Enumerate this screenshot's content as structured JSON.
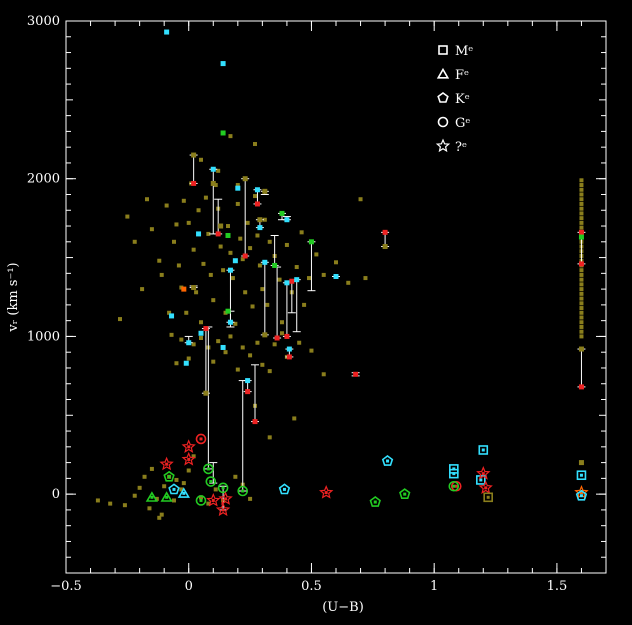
{
  "chart_data": {
    "type": "scatter",
    "title": "",
    "xlabel": "(U−B)",
    "ylabel": "vᵣ (km s⁻¹)",
    "xlim": [
      -0.5,
      1.7
    ],
    "ylim": [
      -500,
      3000
    ],
    "x_ticks": [
      -0.5,
      0,
      0.5,
      1,
      1.5
    ],
    "x_tick_labels": [
      "−0.5",
      "0",
      "0.5",
      "1",
      "1.5"
    ],
    "y_ticks": [
      0,
      1000,
      2000,
      3000
    ],
    "y_tick_labels": [
      "0",
      "1000",
      "2000",
      "3000"
    ],
    "legend_position": "top-right",
    "legend": [
      {
        "marker": "square",
        "label": "Mᵉ"
      },
      {
        "marker": "triangle",
        "label": "Fᵉ"
      },
      {
        "marker": "pentagon",
        "label": "Kᵉ"
      },
      {
        "marker": "circle",
        "label": "Gᵉ"
      },
      {
        "marker": "star",
        "label": "?ᵉ"
      }
    ],
    "colors": {
      "background": "#000000",
      "olive": "#8a7e1c",
      "cyan": "#33e0ff",
      "green": "#22cc22",
      "red": "#ee2222",
      "orange": "#ff6600",
      "white": "#ffffff"
    },
    "background_points": [
      [
        -0.37,
        -40
      ],
      [
        -0.32,
        -60
      ],
      [
        -0.26,
        -70
      ],
      [
        -0.22,
        -10
      ],
      [
        -0.2,
        40
      ],
      [
        -0.18,
        110
      ],
      [
        -0.16,
        -90
      ],
      [
        -0.15,
        160
      ],
      [
        -0.13,
        -30
      ],
      [
        -0.12,
        -150
      ],
      [
        -0.11,
        -130
      ],
      [
        -0.1,
        50
      ],
      [
        -0.08,
        110
      ],
      [
        -0.06,
        -40
      ],
      [
        -0.05,
        90
      ],
      [
        -0.03,
        30
      ],
      [
        -0.02,
        70
      ],
      [
        0.0,
        150
      ],
      [
        0.02,
        240
      ],
      [
        0.05,
        -20
      ],
      [
        0.08,
        -60
      ],
      [
        0.11,
        30
      ],
      [
        0.14,
        -40
      ],
      [
        0.19,
        110
      ],
      [
        0.22,
        60
      ],
      [
        0.25,
        -30
      ],
      [
        -0.28,
        1110
      ],
      [
        -0.25,
        1760
      ],
      [
        -0.22,
        1600
      ],
      [
        -0.19,
        1300
      ],
      [
        -0.17,
        1870
      ],
      [
        -0.15,
        1680
      ],
      [
        -0.12,
        1480
      ],
      [
        -0.11,
        1390
      ],
      [
        -0.09,
        1830
      ],
      [
        -0.08,
        1150
      ],
      [
        -0.07,
        1010
      ],
      [
        -0.06,
        1600
      ],
      [
        -0.05,
        1710
      ],
      [
        -0.04,
        1450
      ],
      [
        -0.03,
        1310
      ],
      [
        -0.02,
        1860
      ],
      [
        -0.01,
        1150
      ],
      [
        0.0,
        1720
      ],
      [
        0.01,
        1970
      ],
      [
        0.02,
        1550
      ],
      [
        0.03,
        1280
      ],
      [
        0.04,
        1800
      ],
      [
        0.05,
        1090
      ],
      [
        0.06,
        1460
      ],
      [
        0.07,
        1880
      ],
      [
        0.08,
        1650
      ],
      [
        0.09,
        1390
      ],
      [
        0.1,
        1230
      ],
      [
        0.11,
        1960
      ],
      [
        0.12,
        1810
      ],
      [
        0.13,
        1570
      ],
      [
        0.14,
        1420
      ],
      [
        0.15,
        1150
      ],
      [
        0.16,
        1700
      ],
      [
        0.17,
        1530
      ],
      [
        0.18,
        1370
      ],
      [
        0.19,
        1080
      ],
      [
        0.2,
        1840
      ],
      [
        0.21,
        1620
      ],
      [
        0.22,
        1490
      ],
      [
        0.23,
        1280
      ],
      [
        0.24,
        1720
      ],
      [
        0.25,
        1560
      ],
      [
        0.26,
        1190
      ],
      [
        0.27,
        1890
      ],
      [
        0.28,
        1640
      ],
      [
        0.29,
        1450
      ],
      [
        0.3,
        1300
      ],
      [
        0.31,
        1740
      ],
      [
        0.32,
        1200
      ],
      [
        0.33,
        1600
      ],
      [
        0.35,
        1510
      ],
      [
        0.37,
        1360
      ],
      [
        0.38,
        1090
      ],
      [
        0.4,
        1580
      ],
      [
        0.42,
        1280
      ],
      [
        0.44,
        1440
      ],
      [
        0.46,
        1660
      ],
      [
        0.47,
        1200
      ],
      [
        0.49,
        1370
      ],
      [
        0.52,
        1520
      ],
      [
        0.55,
        1390
      ],
      [
        0.6,
        1470
      ],
      [
        0.65,
        1340
      ],
      [
        0.7,
        1870
      ],
      [
        0.72,
        1370
      ],
      [
        -0.05,
        830
      ],
      [
        -0.03,
        980
      ],
      [
        0.0,
        860
      ],
      [
        0.02,
        950
      ],
      [
        0.05,
        990
      ],
      [
        0.08,
        930
      ],
      [
        0.1,
        840
      ],
      [
        0.12,
        970
      ],
      [
        0.15,
        900
      ],
      [
        0.17,
        1000
      ],
      [
        0.2,
        790
      ],
      [
        0.22,
        930
      ],
      [
        0.25,
        880
      ],
      [
        0.28,
        960
      ],
      [
        0.3,
        820
      ],
      [
        0.33,
        780
      ],
      [
        0.35,
        950
      ],
      [
        0.38,
        1020
      ],
      [
        0.4,
        870
      ],
      [
        0.45,
        960
      ],
      [
        0.5,
        910
      ],
      [
        0.55,
        760
      ],
      [
        0.43,
        480
      ],
      [
        0.33,
        360
      ],
      [
        0.27,
        560
      ],
      [
        0.17,
        2270
      ],
      [
        0.2,
        1960
      ],
      [
        0.27,
        2220
      ],
      [
        0.12,
        2050
      ],
      [
        0.05,
        2120
      ]
    ],
    "connected_pairs": [
      {
        "x": 0.02,
        "y1": 2150,
        "y2": 1970
      },
      {
        "x": 0.1,
        "y1": 2060,
        "y2": 1650
      },
      {
        "x": 0.12,
        "y1": 1870,
        "y2": 1650
      },
      {
        "x": 0.23,
        "y1": 2000,
        "y2": 1510
      },
      {
        "x": 0.28,
        "y1": 1930,
        "y2": 1840
      },
      {
        "x": 0.31,
        "y1": 1920,
        "y2": 1900
      },
      {
        "x": 0.29,
        "y1": 1740,
        "y2": 1690
      },
      {
        "x": 0.38,
        "y1": 1780,
        "y2": 1740
      },
      {
        "x": 0.4,
        "y1": 1760,
        "y2": 1740
      },
      {
        "x": 0.35,
        "y1": 1640,
        "y2": 1450
      },
      {
        "x": 0.31,
        "y1": 1470,
        "y2": 1010
      },
      {
        "x": 0.36,
        "y1": 1440,
        "y2": 990
      },
      {
        "x": 0.5,
        "y1": 1600,
        "y2": 1290
      },
      {
        "x": 0.42,
        "y1": 1350,
        "y2": 1150
      },
      {
        "x": 0.44,
        "y1": 1360,
        "y2": 1030
      },
      {
        "x": 0.4,
        "y1": 1340,
        "y2": 1000
      },
      {
        "x": 0.41,
        "y1": 920,
        "y2": 870
      },
      {
        "x": 0.6,
        "y1": 1380,
        "y2": 1380
      },
      {
        "x": 0.68,
        "y1": 770,
        "y2": 750
      },
      {
        "x": 0.8,
        "y1": 1660,
        "y2": 1570
      },
      {
        "x": 0.17,
        "y1": 1420,
        "y2": 1060
      },
      {
        "x": 0.17,
        "y1": 1160,
        "y2": 1090
      },
      {
        "x": 0.02,
        "y1": 1320,
        "y2": 1310
      },
      {
        "x": 0.07,
        "y1": 1050,
        "y2": 640
      },
      {
        "x": 0.08,
        "y1": 1060,
        "y2": 160
      },
      {
        "x": 0.22,
        "y1": 720,
        "y2": 20
      },
      {
        "x": 0.24,
        "y1": 720,
        "y2": 650
      },
      {
        "x": 0.27,
        "y1": 820,
        "y2": 460
      },
      {
        "x": 0.0,
        "y1": 1000,
        "y2": 960
      },
      {
        "x": 0.1,
        "y1": 200,
        "y2": 70
      },
      {
        "x": 0.14,
        "y1": 50,
        "y2": -100
      },
      {
        "x": 1.6,
        "y1": 1660,
        "y2": 1460
      },
      {
        "x": 1.6,
        "y1": 920,
        "y2": 680
      }
    ],
    "vertical_strip": {
      "x": 1.6,
      "y_min": 1000,
      "y_max": 1990
    },
    "highlight_points": [
      {
        "x": -0.09,
        "y": 2930,
        "c": "cyan"
      },
      {
        "x": 0.14,
        "y": 2730,
        "c": "cyan"
      },
      {
        "x": 0.14,
        "y": 2290,
        "c": "green"
      },
      {
        "x": 0.02,
        "y": 2150,
        "c": "olive"
      },
      {
        "x": 0.02,
        "y": 1970,
        "c": "red"
      },
      {
        "x": 0.1,
        "y": 2060,
        "c": "cyan"
      },
      {
        "x": 0.1,
        "y": 1970,
        "c": "olive"
      },
      {
        "x": 0.12,
        "y": 1650,
        "c": "red"
      },
      {
        "x": 0.2,
        "y": 1940,
        "c": "cyan"
      },
      {
        "x": 0.23,
        "y": 2000,
        "c": "olive"
      },
      {
        "x": 0.23,
        "y": 1510,
        "c": "red"
      },
      {
        "x": 0.28,
        "y": 1930,
        "c": "cyan"
      },
      {
        "x": 0.28,
        "y": 1840,
        "c": "red"
      },
      {
        "x": 0.31,
        "y": 1920,
        "c": "olive"
      },
      {
        "x": 0.29,
        "y": 1740,
        "c": "olive"
      },
      {
        "x": 0.29,
        "y": 1690,
        "c": "cyan"
      },
      {
        "x": 0.38,
        "y": 1780,
        "c": "green"
      },
      {
        "x": 0.4,
        "y": 1740,
        "c": "cyan"
      },
      {
        "x": 0.35,
        "y": 1450,
        "c": "green"
      },
      {
        "x": 0.31,
        "y": 1470,
        "c": "cyan"
      },
      {
        "x": 0.31,
        "y": 1010,
        "c": "olive"
      },
      {
        "x": 0.36,
        "y": 990,
        "c": "red"
      },
      {
        "x": 0.5,
        "y": 1600,
        "c": "green"
      },
      {
        "x": 0.42,
        "y": 1350,
        "c": "red"
      },
      {
        "x": 0.44,
        "y": 1360,
        "c": "cyan"
      },
      {
        "x": 0.4,
        "y": 1340,
        "c": "cyan"
      },
      {
        "x": 0.4,
        "y": 1000,
        "c": "red"
      },
      {
        "x": 0.41,
        "y": 920,
        "c": "cyan"
      },
      {
        "x": 0.41,
        "y": 870,
        "c": "red"
      },
      {
        "x": 0.6,
        "y": 1380,
        "c": "cyan"
      },
      {
        "x": 0.68,
        "y": 760,
        "c": "red"
      },
      {
        "x": 0.8,
        "y": 1660,
        "c": "red"
      },
      {
        "x": 0.8,
        "y": 1570,
        "c": "olive"
      },
      {
        "x": -0.02,
        "y": 1300,
        "c": "orange"
      },
      {
        "x": 0.02,
        "y": 1310,
        "c": "olive"
      },
      {
        "x": -0.07,
        "y": 1130,
        "c": "cyan"
      },
      {
        "x": 0.0,
        "y": 960,
        "c": "cyan"
      },
      {
        "x": -0.01,
        "y": 830,
        "c": "cyan"
      },
      {
        "x": 0.07,
        "y": 1050,
        "c": "red"
      },
      {
        "x": 0.07,
        "y": 640,
        "c": "olive"
      },
      {
        "x": 0.17,
        "y": 1420,
        "c": "cyan"
      },
      {
        "x": 0.17,
        "y": 1090,
        "c": "cyan"
      },
      {
        "x": 0.16,
        "y": 1160,
        "c": "green"
      },
      {
        "x": 0.04,
        "y": 1650,
        "c": "cyan"
      },
      {
        "x": 0.13,
        "y": 1700,
        "c": "olive"
      },
      {
        "x": 0.16,
        "y": 1640,
        "c": "green"
      },
      {
        "x": 0.19,
        "y": 1480,
        "c": "cyan"
      },
      {
        "x": 0.14,
        "y": 930,
        "c": "cyan"
      },
      {
        "x": 0.24,
        "y": 720,
        "c": "cyan"
      },
      {
        "x": 0.24,
        "y": 650,
        "c": "red"
      },
      {
        "x": 0.27,
        "y": 460,
        "c": "red"
      },
      {
        "x": 0.05,
        "y": 1020,
        "c": "cyan"
      },
      {
        "x": 1.6,
        "y": 1660,
        "c": "red"
      },
      {
        "x": 1.6,
        "y": 1460,
        "c": "red"
      },
      {
        "x": 1.6,
        "y": 1630,
        "c": "green"
      },
      {
        "x": 1.6,
        "y": 920,
        "c": "olive"
      },
      {
        "x": 1.6,
        "y": 680,
        "c": "red"
      },
      {
        "x": 1.6,
        "y": 200,
        "c": "olive"
      }
    ],
    "marker_points": [
      {
        "x": 0.05,
        "y": 350,
        "m": "circle",
        "c": "red"
      },
      {
        "x": 0.0,
        "y": 300,
        "m": "star",
        "c": "red"
      },
      {
        "x": -0.09,
        "y": 190,
        "m": "star",
        "c": "red"
      },
      {
        "x": 0.0,
        "y": 220,
        "m": "star",
        "c": "red"
      },
      {
        "x": 0.08,
        "y": 160,
        "m": "circle",
        "c": "green"
      },
      {
        "x": -0.08,
        "y": 110,
        "m": "pentagon",
        "c": "green"
      },
      {
        "x": 0.09,
        "y": 80,
        "m": "circle",
        "c": "green"
      },
      {
        "x": -0.06,
        "y": 30,
        "m": "pentagon",
        "c": "cyan"
      },
      {
        "x": -0.02,
        "y": 5,
        "m": "triangle",
        "c": "cyan"
      },
      {
        "x": -0.15,
        "y": -20,
        "m": "triangle",
        "c": "green"
      },
      {
        "x": -0.09,
        "y": -20,
        "m": "triangle",
        "c": "green"
      },
      {
        "x": 0.05,
        "y": -40,
        "m": "circle",
        "c": "green"
      },
      {
        "x": 0.1,
        "y": -40,
        "m": "star",
        "c": "red"
      },
      {
        "x": 0.14,
        "y": 40,
        "m": "circle",
        "c": "green"
      },
      {
        "x": 0.15,
        "y": -30,
        "m": "star",
        "c": "red"
      },
      {
        "x": 0.14,
        "y": -100,
        "m": "star",
        "c": "red"
      },
      {
        "x": 0.22,
        "y": 20,
        "m": "circle",
        "c": "green"
      },
      {
        "x": 0.39,
        "y": 30,
        "m": "pentagon",
        "c": "cyan"
      },
      {
        "x": 0.56,
        "y": 10,
        "m": "star",
        "c": "red"
      },
      {
        "x": 0.76,
        "y": -50,
        "m": "pentagon",
        "c": "green"
      },
      {
        "x": 0.81,
        "y": 210,
        "m": "pentagon",
        "c": "cyan"
      },
      {
        "x": 0.88,
        "y": 0,
        "m": "pentagon",
        "c": "green"
      },
      {
        "x": 1.08,
        "y": 160,
        "m": "square",
        "c": "cyan"
      },
      {
        "x": 1.08,
        "y": 130,
        "m": "square",
        "c": "cyan"
      },
      {
        "x": 1.09,
        "y": 50,
        "m": "circle",
        "c": "red"
      },
      {
        "x": 1.08,
        "y": 50,
        "m": "circle",
        "c": "green"
      },
      {
        "x": 1.19,
        "y": 90,
        "m": "square",
        "c": "cyan"
      },
      {
        "x": 1.2,
        "y": 280,
        "m": "square",
        "c": "cyan"
      },
      {
        "x": 1.2,
        "y": 130,
        "m": "star",
        "c": "red"
      },
      {
        "x": 1.21,
        "y": 40,
        "m": "star",
        "c": "red"
      },
      {
        "x": 1.22,
        "y": -20,
        "m": "square",
        "c": "olive"
      },
      {
        "x": 1.6,
        "y": 120,
        "m": "square",
        "c": "cyan"
      },
      {
        "x": 1.6,
        "y": 10,
        "m": "star",
        "c": "orange"
      },
      {
        "x": 1.6,
        "y": -10,
        "m": "pentagon",
        "c": "cyan"
      }
    ]
  }
}
